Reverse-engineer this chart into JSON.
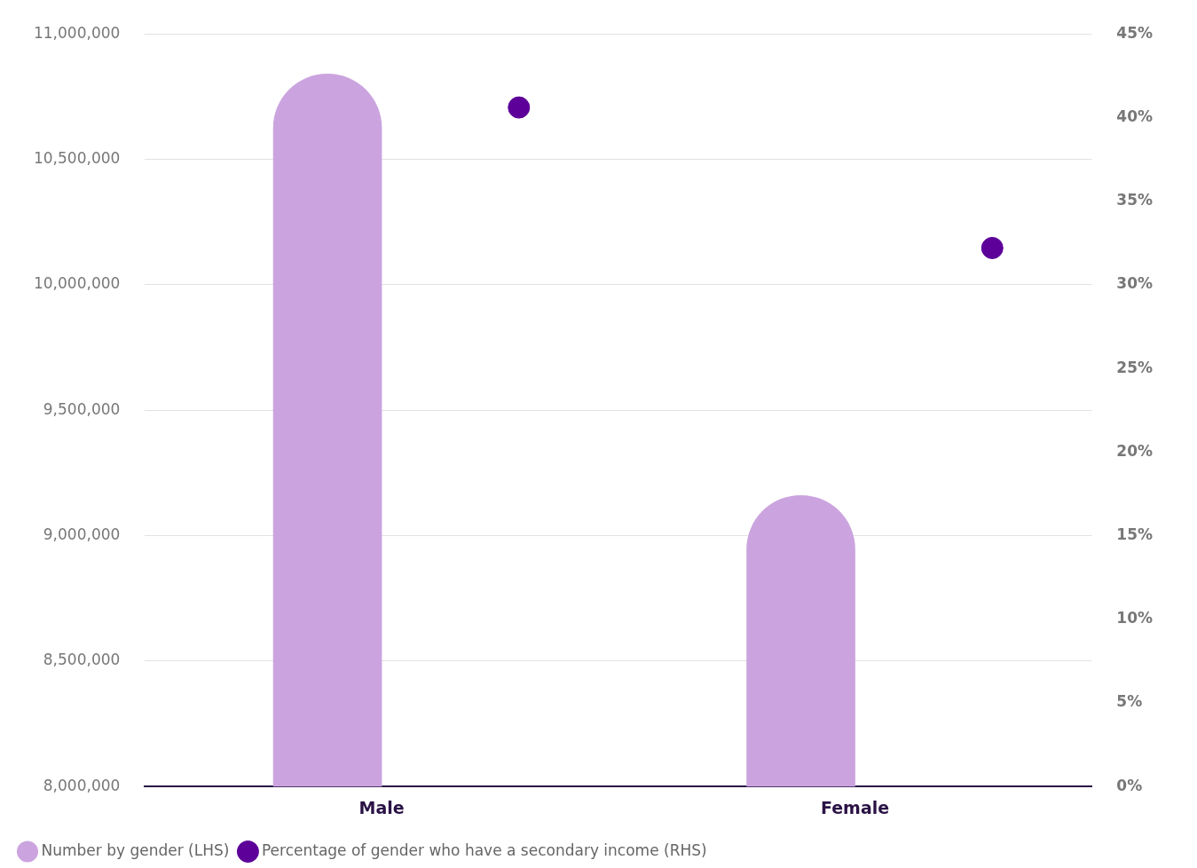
{
  "chart_data": {
    "type": "bar",
    "categories": [
      "Male",
      "Female"
    ],
    "series": [
      {
        "name": "Number by gender (LHS)",
        "color": "#cba4df",
        "values": [
          10840000,
          9160000
        ]
      },
      {
        "name": "Percentage of gender who have a secondary income (RHS)",
        "type": "scatter",
        "axis": "y2",
        "color": "#5c0099",
        "x": [
          "Male",
          "Female"
        ],
        "values": [
          40.6,
          32.2
        ]
      }
    ],
    "ylim": [
      8000000,
      11000000
    ],
    "yticks": [
      {
        "value": 8000000,
        "label": "8,000,000"
      },
      {
        "value": 8500000,
        "label": "8,500,000"
      },
      {
        "value": 9000000,
        "label": "9,000,000"
      },
      {
        "value": 9500000,
        "label": "9,500,000"
      },
      {
        "value": 10000000,
        "label": "10,000,000"
      },
      {
        "value": 10500000,
        "label": "10,500,000"
      },
      {
        "value": 11000000,
        "label": "11,000,000"
      }
    ],
    "y2lim": [
      0,
      45
    ],
    "y2ticks": [
      {
        "value": 0,
        "label": "0%"
      },
      {
        "value": 5,
        "label": "5%"
      },
      {
        "value": 10,
        "label": "10%"
      },
      {
        "value": 15,
        "label": "15%"
      },
      {
        "value": 20,
        "label": "20%"
      },
      {
        "value": 25,
        "label": "25%"
      },
      {
        "value": 30,
        "label": "30%"
      },
      {
        "value": 35,
        "label": "35%"
      },
      {
        "value": 40,
        "label": "40%"
      },
      {
        "value": 45,
        "label": "45%"
      }
    ],
    "grid": "y",
    "legend": "bottom left",
    "marker": "circle"
  }
}
